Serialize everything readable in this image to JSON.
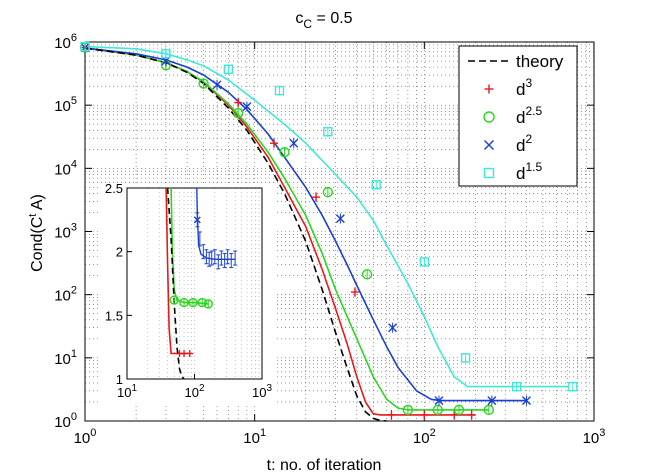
{
  "chart_data": {
    "type": "line",
    "title_base": "c",
    "title_sub": "C",
    "title_rest": " = 0.5",
    "xlabel": "t: no. of iteration",
    "ylabel": "Cond(C",
    "ylabel_sup": "t",
    "ylabel_rest": " A)",
    "xscale": "log",
    "yscale": "log",
    "xlim": [
      1,
      1000
    ],
    "ylim": [
      1,
      1000000
    ],
    "grid": true,
    "legend_position": "top-right",
    "x_ticks": [
      {
        "value": 1,
        "base": "10",
        "exp": "0"
      },
      {
        "value": 10,
        "base": "10",
        "exp": "1"
      },
      {
        "value": 100,
        "base": "10",
        "exp": "2"
      },
      {
        "value": 1000,
        "base": "10",
        "exp": "3"
      }
    ],
    "y_ticks": [
      {
        "value": 1,
        "base": "10",
        "exp": "0"
      },
      {
        "value": 10,
        "base": "10",
        "exp": "1"
      },
      {
        "value": 100,
        "base": "10",
        "exp": "2"
      },
      {
        "value": 1000,
        "base": "10",
        "exp": "3"
      },
      {
        "value": 10000,
        "base": "10",
        "exp": "4"
      },
      {
        "value": 100000,
        "base": "10",
        "exp": "5"
      },
      {
        "value": 1000000,
        "base": "10",
        "exp": "6"
      }
    ],
    "theory": {
      "name": "theory",
      "style": "dashed",
      "color": "#000000",
      "x": [
        1,
        2,
        3,
        4,
        5,
        7,
        9,
        12,
        15,
        20,
        25,
        30,
        35,
        40,
        45,
        50,
        55,
        60
      ],
      "y": [
        800000,
        620000,
        470000,
        330000,
        220000,
        90000,
        40000,
        12000,
        4000,
        700,
        120,
        25,
        7,
        2.5,
        1.4,
        1.1,
        1.02,
        1.0
      ]
    },
    "series": [
      {
        "name": "d",
        "exp": "3",
        "color": "#e8191b",
        "marker": "plus",
        "x": [
          1,
          2,
          3,
          4,
          5,
          7,
          9,
          12,
          15,
          20,
          25,
          30,
          35,
          40,
          45,
          50,
          55,
          60,
          64,
          70,
          100,
          150,
          200
        ],
        "y": [
          800000,
          620000,
          470000,
          340000,
          230000,
          100000,
          45000,
          15000,
          5000,
          1200,
          250,
          60,
          17,
          5,
          2,
          1.3,
          1.25,
          1.25,
          1.25,
          1.25,
          1.25,
          1.25,
          1.25
        ],
        "markers_x": [
          1,
          3,
          8,
          13,
          23,
          39,
          64,
          100,
          150,
          190
        ],
        "markers_y": [
          820000,
          480000,
          110000,
          25000,
          3500,
          110,
          1.25,
          1.25,
          1.25,
          1.25
        ]
      },
      {
        "name": "d",
        "exp": "2.5",
        "color": "#2bd61e",
        "marker": "circle",
        "x": [
          1,
          2,
          3,
          4,
          5,
          7,
          9,
          12,
          15,
          20,
          25,
          30,
          40,
          50,
          60,
          70,
          80,
          90,
          120,
          160,
          240
        ],
        "y": [
          800000,
          620000,
          470000,
          340000,
          235000,
          105000,
          50000,
          18000,
          7000,
          1800,
          450,
          120,
          20,
          5,
          2.2,
          1.6,
          1.5,
          1.5,
          1.5,
          1.5,
          1.5
        ],
        "markers_x": [
          1,
          3,
          5,
          8,
          15,
          27,
          46,
          80,
          120,
          160,
          240
        ],
        "markers_y": [
          820000,
          430000,
          220000,
          75000,
          18000,
          4200,
          210,
          1.5,
          1.5,
          1.5,
          1.5
        ],
        "inset_x": [
          50,
          70,
          95,
          130,
          160
        ],
        "inset_y": [
          1.62,
          1.6,
          1.6,
          1.6,
          1.59
        ]
      },
      {
        "name": "d",
        "exp": "2",
        "color": "#1a3fd6",
        "marker": "x",
        "x": [
          1,
          2,
          3,
          4,
          5,
          7,
          9,
          12,
          15,
          20,
          25,
          30,
          35,
          40,
          50,
          60,
          70,
          90,
          110,
          125,
          200,
          400
        ],
        "y": [
          800000,
          650000,
          520000,
          400000,
          300000,
          160000,
          85000,
          35000,
          15000,
          5000,
          1800,
          700,
          300,
          140,
          40,
          15,
          7,
          3,
          2.2,
          2.1,
          2.1,
          2.1
        ],
        "markers_x": [
          1,
          3,
          6,
          9,
          17,
          32,
          65,
          122,
          250,
          400
        ],
        "markers_y": [
          820000,
          500000,
          210000,
          95000,
          25000,
          1600,
          30,
          2.1,
          2.1,
          2.1
        ],
        "inset_x": [
          110,
          120,
          135,
          150,
          165,
          180,
          200,
          225,
          250,
          280,
          310,
          350,
          400
        ],
        "inset_y": [
          2.25,
          2.1,
          2.0,
          1.96,
          1.94,
          1.95,
          1.96,
          1.92,
          1.95,
          1.93,
          1.96,
          1.93,
          1.95
        ]
      },
      {
        "name": "d",
        "exp": "1.5",
        "color": "#40e8d6",
        "marker": "square",
        "x": [
          1,
          2,
          3,
          4,
          5,
          7,
          10,
          15,
          20,
          30,
          40,
          50,
          60,
          80,
          100,
          120,
          150,
          180,
          220,
          300,
          400,
          700
        ],
        "y": [
          850000,
          780000,
          650000,
          520000,
          420000,
          250000,
          120000,
          50000,
          25000,
          8000,
          3500,
          1500,
          600,
          150,
          45,
          15,
          5,
          3.5,
          3.5,
          3.5,
          3.5,
          3.5
        ],
        "markers_x": [
          1,
          3,
          7,
          14,
          27,
          52,
          100,
          175,
          350,
          750
        ],
        "markers_y": [
          850000,
          650000,
          370000,
          170000,
          38000,
          5500,
          330,
          10,
          3.5,
          3.5
        ]
      }
    ],
    "inset": {
      "xscale": "log",
      "xlim": [
        10,
        1000
      ],
      "ylim": [
        1,
        2.5
      ],
      "x_ticks": [
        {
          "value": 10,
          "base": "10",
          "exp": "1"
        },
        {
          "value": 100,
          "base": "10",
          "exp": "2"
        },
        {
          "value": 1000,
          "base": "10",
          "exp": "3"
        }
      ],
      "y_ticks": [
        {
          "value": 1,
          "label": "1"
        },
        {
          "value": 1.5,
          "label": "1.5"
        },
        {
          "value": 2,
          "label": "2"
        },
        {
          "value": 2.5,
          "label": "2.5"
        }
      ],
      "theory": {
        "x": [
          40,
          45,
          50,
          55,
          60,
          65,
          70
        ],
        "y": [
          2.5,
          2.1,
          1.6,
          1.25,
          1.08,
          1.02,
          1.0
        ]
      },
      "series_red": {
        "x": [
          38,
          40,
          42,
          45,
          55,
          70,
          85
        ],
        "y": [
          2.5,
          1.9,
          1.4,
          1.2,
          1.2,
          1.2,
          1.2
        ],
        "markers_x": [
          60,
          70,
          85
        ],
        "markers_y": [
          1.2,
          1.2,
          1.2
        ]
      },
      "series_green_line": {
        "x": [
          45,
          47,
          50,
          55,
          70,
          100,
          160
        ],
        "y": [
          2.5,
          2.0,
          1.7,
          1.62,
          1.6,
          1.6,
          1.59
        ]
      },
      "series_blue_line": {
        "x": [
          108,
          110,
          115,
          125,
          150,
          200,
          400
        ],
        "y": [
          2.5,
          2.3,
          2.05,
          1.98,
          1.95,
          1.94,
          1.94
        ]
      }
    }
  }
}
